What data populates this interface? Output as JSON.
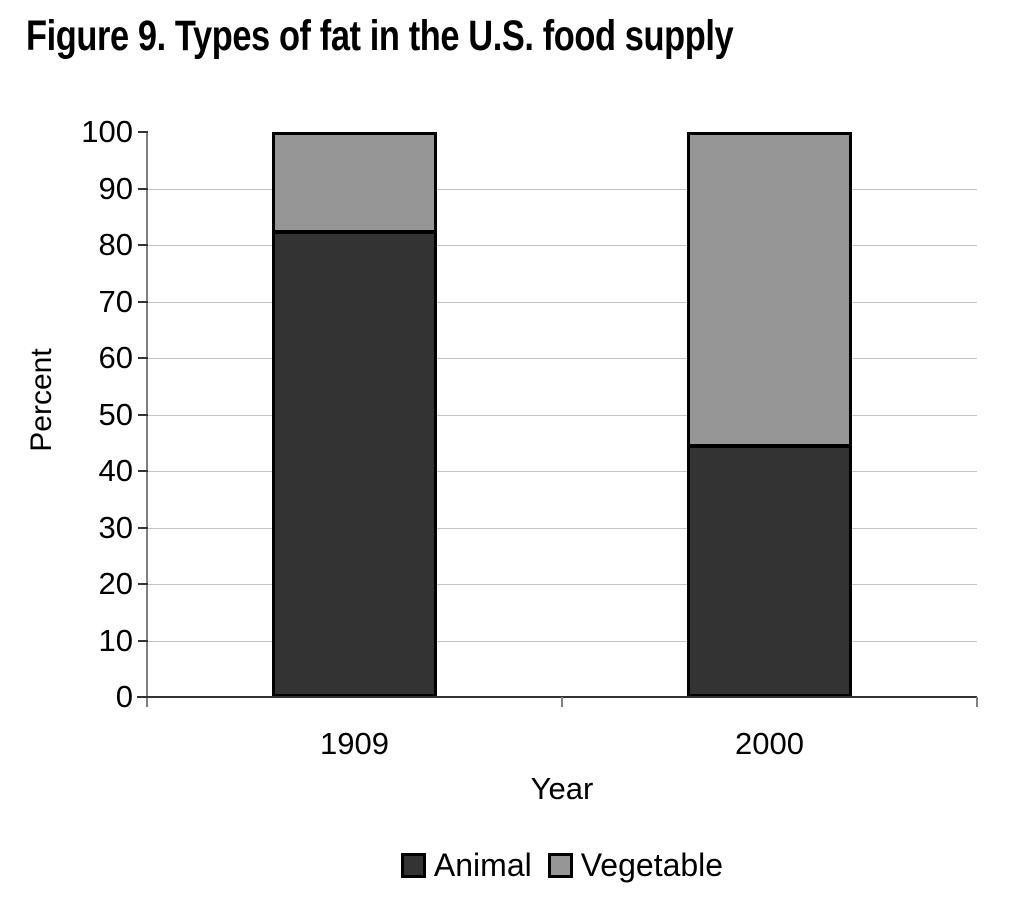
{
  "title": "Figure 9. Types of fat in the U.S. food supply",
  "chart_data": {
    "type": "bar",
    "stacked": true,
    "title": "Figure 9. Types of fat in the U.S. food supply",
    "categories": [
      "1909",
      "2000"
    ],
    "series": [
      {
        "name": "Animal",
        "values": [
          82,
          44
        ],
        "color": "#333333"
      },
      {
        "name": "Vegetable",
        "values": [
          18,
          56
        ],
        "color": "#969696"
      }
    ],
    "xlabel": "Year",
    "ylabel": "Percent",
    "ylim": [
      0,
      100
    ],
    "yticks": [
      0,
      10,
      20,
      30,
      40,
      50,
      60,
      70,
      80,
      90,
      100
    ],
    "grid": "horizontal",
    "legend_position": "bottom",
    "colors": {
      "gridline": "#c3c3c3",
      "axis_line": "#808080",
      "tick_mark": "#333333",
      "baseline": "#333333",
      "bar_border": "#000000",
      "text": "#000000"
    }
  }
}
